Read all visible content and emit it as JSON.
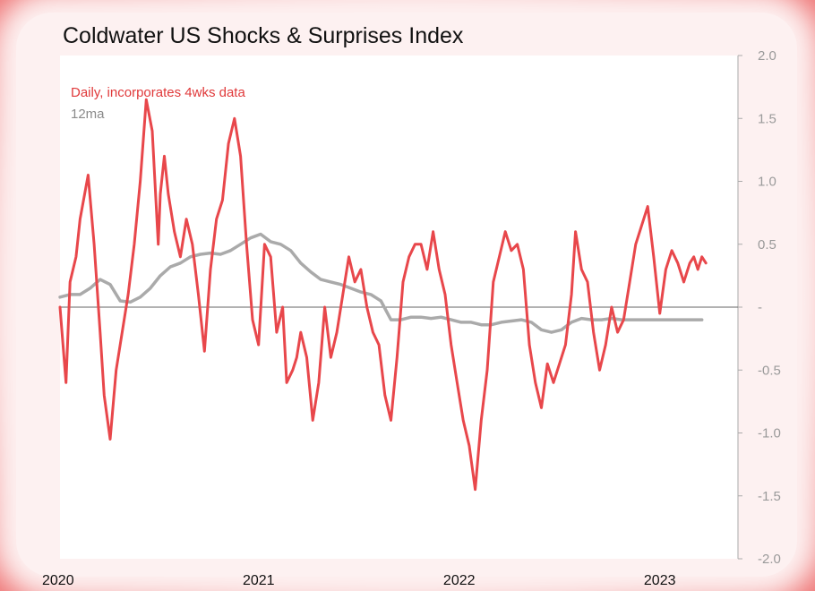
{
  "chart_data": {
    "type": "line",
    "title": "Coldwater US Shocks & Surprises Index",
    "ylim": [
      -2.0,
      2.0
    ],
    "yticks": [
      2.0,
      1.5,
      1.0,
      0.5,
      0,
      -0.5,
      -1.0,
      -1.5,
      -2.0
    ],
    "ytick_labels": [
      "2.0",
      "1.5",
      "1.0",
      "0.5",
      "-",
      "-0.5",
      "-1.0",
      "-1.5",
      "-2.0"
    ],
    "xlim": [
      2020.0,
      2023.38
    ],
    "xticks": [
      2020,
      2021,
      2022,
      2023
    ],
    "xtick_labels": [
      "2020",
      "2021",
      "2022",
      "2023"
    ],
    "zero_line": true,
    "legend_position": "top-left",
    "series": [
      {
        "name": "Daily, incorporates 4wks data",
        "color": "#e8474b",
        "x": [
          2020.0,
          2020.03,
          2020.05,
          2020.08,
          2020.1,
          2020.14,
          2020.17,
          2020.2,
          2020.22,
          2020.25,
          2020.28,
          2020.31,
          2020.34,
          2020.37,
          2020.4,
          2020.43,
          2020.46,
          2020.49,
          2020.5,
          2020.52,
          2020.54,
          2020.57,
          2020.6,
          2020.63,
          2020.66,
          2020.69,
          2020.72,
          2020.75,
          2020.78,
          2020.81,
          2020.84,
          2020.87,
          2020.9,
          2020.93,
          2020.96,
          2020.99,
          2021.02,
          2021.05,
          2021.08,
          2021.11,
          2021.13,
          2021.16,
          2021.18,
          2021.2,
          2021.23,
          2021.26,
          2021.29,
          2021.32,
          2021.35,
          2021.38,
          2021.41,
          2021.44,
          2021.47,
          2021.5,
          2021.53,
          2021.56,
          2021.59,
          2021.62,
          2021.65,
          2021.68,
          2021.71,
          2021.74,
          2021.77,
          2021.8,
          2021.83,
          2021.86,
          2021.89,
          2021.92,
          2021.95,
          2021.98,
          2022.01,
          2022.04,
          2022.07,
          2022.1,
          2022.13,
          2022.16,
          2022.19,
          2022.22,
          2022.25,
          2022.28,
          2022.31,
          2022.34,
          2022.37,
          2022.4,
          2022.43,
          2022.46,
          2022.49,
          2022.52,
          2022.55,
          2022.57,
          2022.6,
          2022.63,
          2022.66,
          2022.69,
          2022.72,
          2022.75,
          2022.78,
          2022.81,
          2022.84,
          2022.87,
          2022.9,
          2022.93,
          2022.96,
          2022.99,
          2023.02,
          2023.05,
          2023.08,
          2023.11,
          2023.14,
          2023.16,
          2023.18,
          2023.2,
          2023.22
        ],
        "y": [
          0.0,
          -0.6,
          0.2,
          0.4,
          0.7,
          1.05,
          0.5,
          -0.2,
          -0.7,
          -1.05,
          -0.5,
          -0.2,
          0.1,
          0.5,
          1.0,
          1.65,
          1.4,
          0.5,
          0.9,
          1.2,
          0.9,
          0.6,
          0.4,
          0.7,
          0.5,
          0.1,
          -0.35,
          0.3,
          0.7,
          0.85,
          1.3,
          1.5,
          1.2,
          0.5,
          -0.1,
          -0.3,
          0.5,
          0.4,
          -0.2,
          0.0,
          -0.6,
          -0.5,
          -0.4,
          -0.2,
          -0.4,
          -0.9,
          -0.6,
          0.0,
          -0.4,
          -0.2,
          0.1,
          0.4,
          0.2,
          0.3,
          0.0,
          -0.2,
          -0.3,
          -0.7,
          -0.9,
          -0.4,
          0.2,
          0.4,
          0.5,
          0.5,
          0.3,
          0.6,
          0.3,
          0.1,
          -0.3,
          -0.6,
          -0.9,
          -1.1,
          -1.45,
          -0.9,
          -0.5,
          0.2,
          0.4,
          0.6,
          0.45,
          0.5,
          0.3,
          -0.3,
          -0.6,
          -0.8,
          -0.45,
          -0.6,
          -0.45,
          -0.3,
          0.1,
          0.6,
          0.3,
          0.2,
          -0.2,
          -0.5,
          -0.3,
          0.0,
          -0.2,
          -0.1,
          0.2,
          0.5,
          0.65,
          0.8,
          0.4,
          -0.05,
          0.3,
          0.45,
          0.35,
          0.2,
          0.35,
          0.4,
          0.3,
          0.4,
          0.35
        ]
      },
      {
        "name": "12ma",
        "color": "#aaaaaa",
        "x": [
          2020.0,
          2020.05,
          2020.1,
          2020.15,
          2020.2,
          2020.25,
          2020.3,
          2020.35,
          2020.4,
          2020.45,
          2020.5,
          2020.55,
          2020.6,
          2020.65,
          2020.7,
          2020.75,
          2020.8,
          2020.85,
          2020.9,
          2020.95,
          2021.0,
          2021.05,
          2021.1,
          2021.15,
          2021.2,
          2021.25,
          2021.3,
          2021.35,
          2021.4,
          2021.45,
          2021.5,
          2021.55,
          2021.6,
          2021.65,
          2021.7,
          2021.75,
          2021.8,
          2021.85,
          2021.9,
          2021.95,
          2022.0,
          2022.05,
          2022.1,
          2022.15,
          2022.2,
          2022.25,
          2022.3,
          2022.35,
          2022.4,
          2022.45,
          2022.5,
          2022.55,
          2022.6,
          2022.65,
          2022.7,
          2022.75,
          2022.8,
          2022.85,
          2022.9,
          2022.95,
          2023.0,
          2023.05,
          2023.1,
          2023.15,
          2023.2
        ],
        "y": [
          0.08,
          0.1,
          0.1,
          0.15,
          0.22,
          0.18,
          0.05,
          0.04,
          0.08,
          0.15,
          0.25,
          0.32,
          0.35,
          0.4,
          0.42,
          0.43,
          0.42,
          0.45,
          0.5,
          0.55,
          0.58,
          0.52,
          0.5,
          0.45,
          0.35,
          0.28,
          0.22,
          0.2,
          0.18,
          0.15,
          0.12,
          0.1,
          0.05,
          -0.1,
          -0.1,
          -0.08,
          -0.08,
          -0.09,
          -0.08,
          -0.1,
          -0.12,
          -0.12,
          -0.14,
          -0.14,
          -0.12,
          -0.11,
          -0.1,
          -0.12,
          -0.18,
          -0.2,
          -0.18,
          -0.12,
          -0.09,
          -0.1,
          -0.1,
          -0.09,
          -0.1,
          -0.1,
          -0.1,
          -0.1,
          -0.1,
          -0.1,
          -0.1,
          -0.1,
          -0.1
        ]
      }
    ]
  }
}
